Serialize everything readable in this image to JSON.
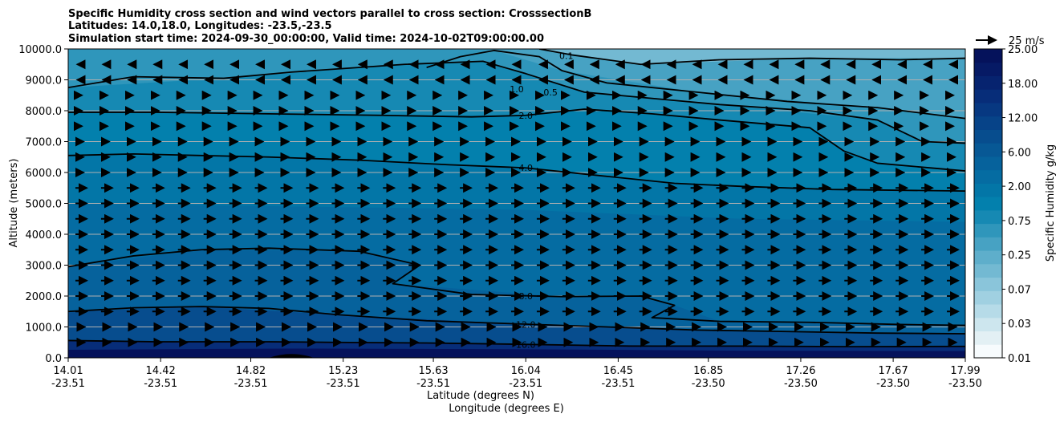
{
  "chart_data": {
    "type": "contour",
    "title_lines": [
      "Specific Humidity cross section and wind vectors parallel to cross section: CrosssectionB",
      "Latitudes: 14.0,18.0, Longitudes: -23.5,-23.5",
      "Simulation start time: 2024-09-30_00:00:00, Valid time: 2024-10-02T09:00:00.00"
    ],
    "ylabel": "Altitude (meters)",
    "xlabel_lines": [
      "Latitude (degrees N)",
      "Longitude (degrees E)"
    ],
    "ylim": [
      0,
      10000
    ],
    "y_ticks": [
      "0.0",
      "1000.0",
      "2000.0",
      "3000.0",
      "4000.0",
      "5000.0",
      "6000.0",
      "7000.0",
      "8000.0",
      "9000.0",
      "10000.0"
    ],
    "x_ticks": [
      {
        "lat": "14.01",
        "lon": "-23.51"
      },
      {
        "lat": "14.42",
        "lon": "-23.51"
      },
      {
        "lat": "14.82",
        "lon": "-23.51"
      },
      {
        "lat": "15.23",
        "lon": "-23.51"
      },
      {
        "lat": "15.63",
        "lon": "-23.51"
      },
      {
        "lat": "16.04",
        "lon": "-23.51"
      },
      {
        "lat": "16.45",
        "lon": "-23.51"
      },
      {
        "lat": "16.85",
        "lon": "-23.50"
      },
      {
        "lat": "17.26",
        "lon": "-23.50"
      },
      {
        "lat": "17.67",
        "lon": "-23.50"
      },
      {
        "lat": "17.99",
        "lon": "-23.50"
      }
    ],
    "xlim": [
      14.01,
      17.99
    ],
    "grid": "horizontal",
    "colorbar": {
      "label": "Specific Humidity g/kg",
      "tick_labels": [
        "0.01",
        "0.03",
        "0.07",
        "0.25",
        "0.75",
        "2.00",
        "6.00",
        "12.00",
        "18.00",
        "25.00"
      ],
      "colors": [
        "#f7fbfd",
        "#e3f0f4",
        "#cde6ee",
        "#b6dbe8",
        "#a0d0e1",
        "#8ac5da",
        "#73b9d2",
        "#5eaecb",
        "#47a2c3",
        "#2f96bb",
        "#1689b3",
        "#0380ad",
        "#0376a7",
        "#056ca2",
        "#06629c",
        "#075895",
        "#074d8e",
        "#074388",
        "#073881",
        "#072d79",
        "#06236f",
        "#061a65",
        "#05125b"
      ]
    },
    "quiver_key": {
      "label": "25 m/s",
      "speed": 25
    },
    "contours": [
      {
        "level": "16.0",
        "points": [
          [
            14.01,
            560
          ],
          [
            14.4,
            520
          ],
          [
            14.9,
            520
          ],
          [
            15.2,
            500
          ],
          [
            15.6,
            480
          ],
          [
            16.0,
            440
          ],
          [
            16.5,
            380
          ],
          [
            17.0,
            380
          ],
          [
            17.5,
            360
          ],
          [
            17.99,
            370
          ]
        ],
        "label_at": [
          16.04,
          430
        ]
      },
      {
        "level": "12.0",
        "points": [
          [
            14.01,
            1500
          ],
          [
            14.3,
            1620
          ],
          [
            14.6,
            1660
          ],
          [
            14.9,
            1600
          ],
          [
            15.2,
            1400
          ],
          [
            15.6,
            1200
          ],
          [
            16.0,
            1100
          ],
          [
            16.4,
            1000
          ],
          [
            16.8,
            900
          ],
          [
            17.2,
            850
          ],
          [
            17.6,
            800
          ],
          [
            17.99,
            780
          ]
        ],
        "label_at": [
          16.04,
          1080
        ]
      },
      {
        "level": "8.0",
        "points": [
          [
            14.01,
            2950
          ],
          [
            14.3,
            3300
          ],
          [
            14.6,
            3500
          ],
          [
            14.9,
            3550
          ],
          [
            15.3,
            3450
          ],
          [
            15.57,
            3000
          ],
          [
            15.45,
            2400
          ],
          [
            15.8,
            2050
          ],
          [
            16.2,
            1980
          ],
          [
            16.55,
            2000
          ],
          [
            16.7,
            1700
          ],
          [
            16.6,
            1300
          ],
          [
            16.9,
            1180
          ],
          [
            17.3,
            1150
          ],
          [
            17.7,
            1080
          ],
          [
            17.99,
            1050
          ]
        ],
        "label_at": [
          16.04,
          2000
        ]
      },
      {
        "level": "4.0",
        "points": [
          [
            14.01,
            6550
          ],
          [
            14.3,
            6600
          ],
          [
            14.9,
            6500
          ],
          [
            15.3,
            6400
          ],
          [
            15.7,
            6250
          ],
          [
            16.04,
            6150
          ],
          [
            16.3,
            5950
          ],
          [
            16.7,
            5650
          ],
          [
            17.0,
            5550
          ],
          [
            17.4,
            5450
          ],
          [
            17.99,
            5400
          ]
        ],
        "label_at": [
          16.04,
          6150
        ]
      },
      {
        "level": "2.0",
        "points": [
          [
            14.01,
            7950
          ],
          [
            14.4,
            7950
          ],
          [
            14.9,
            7900
          ],
          [
            15.4,
            7850
          ],
          [
            15.8,
            7800
          ],
          [
            16.04,
            7850
          ],
          [
            16.3,
            8050
          ],
          [
            16.6,
            7900
          ],
          [
            16.9,
            7700
          ],
          [
            17.3,
            7450
          ],
          [
            17.45,
            6700
          ],
          [
            17.6,
            6300
          ],
          [
            17.99,
            6050
          ]
        ],
        "label_at": [
          16.04,
          7850
        ]
      },
      {
        "level": "1.0",
        "points": [
          [
            14.01,
            8750
          ],
          [
            14.3,
            9100
          ],
          [
            14.7,
            9050
          ],
          [
            15.0,
            9250
          ],
          [
            15.5,
            9500
          ],
          [
            15.85,
            9600
          ],
          [
            16.04,
            9200
          ],
          [
            16.3,
            8600
          ],
          [
            16.6,
            8400
          ],
          [
            16.9,
            8200
          ],
          [
            17.3,
            8000
          ],
          [
            17.6,
            7700
          ],
          [
            17.8,
            7000
          ],
          [
            17.99,
            6950
          ]
        ],
        "label_at": [
          16.0,
          8700
        ]
      },
      {
        "level": "0.5",
        "points": [
          [
            15.6,
            9400
          ],
          [
            15.75,
            9750
          ],
          [
            15.9,
            9950
          ],
          [
            16.1,
            9750
          ],
          [
            16.2,
            9300
          ],
          [
            16.4,
            8900
          ],
          [
            16.8,
            8600
          ],
          [
            17.2,
            8300
          ],
          [
            17.6,
            8100
          ],
          [
            17.99,
            7750
          ]
        ],
        "label_at": [
          16.15,
          8600
        ]
      },
      {
        "level": "0.1",
        "points": [
          [
            16.1,
            10000
          ],
          [
            16.25,
            9800
          ],
          [
            16.55,
            9500
          ],
          [
            16.9,
            9650
          ],
          [
            17.3,
            9700
          ],
          [
            17.7,
            9650
          ],
          [
            17.99,
            9700
          ]
        ],
        "label_at": [
          16.22,
          9780
        ]
      }
    ]
  }
}
